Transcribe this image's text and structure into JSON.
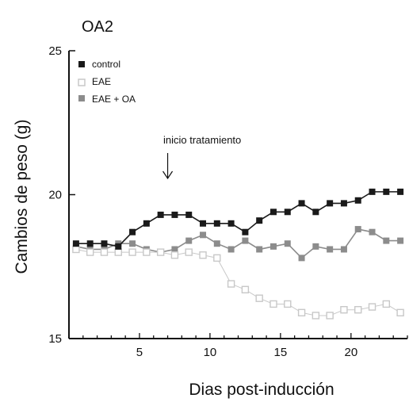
{
  "panel_title": "OA2",
  "chart_data": {
    "type": "line",
    "title": "OA2",
    "xlabel": "Dias post-inducción",
    "ylabel": "Cambios de peso (g)",
    "xlim": [
      0,
      24
    ],
    "ylim": [
      15,
      25
    ],
    "xticks": [
      5,
      10,
      15,
      20
    ],
    "yticks": [
      15,
      20,
      25
    ],
    "x": [
      0.5,
      1.5,
      2.5,
      3.5,
      4.5,
      5.5,
      6.5,
      7.5,
      8.5,
      9.5,
      10.5,
      11.5,
      12.5,
      13.5,
      14.5,
      15.5,
      16.5,
      17.5,
      18.5,
      19.5,
      20.5,
      21.5,
      22.5,
      23.5
    ],
    "series": [
      {
        "name": "control",
        "color": "#1a1a1a",
        "values": [
          18.3,
          18.3,
          18.3,
          18.2,
          18.7,
          19.0,
          19.3,
          19.3,
          19.3,
          19.0,
          19.0,
          19.0,
          18.7,
          19.1,
          19.4,
          19.4,
          19.7,
          19.4,
          19.7,
          19.7,
          19.8,
          20.1,
          20.1,
          20.1
        ]
      },
      {
        "name": "EAE",
        "color": "#c8c8c8",
        "values": [
          18.1,
          18.0,
          18.0,
          18.0,
          18.0,
          18.0,
          18.0,
          17.9,
          18.0,
          17.9,
          17.8,
          16.9,
          16.7,
          16.4,
          16.2,
          16.2,
          15.9,
          15.8,
          15.8,
          16.0,
          16.0,
          16.1,
          16.2,
          15.9
        ]
      },
      {
        "name": "EAE + OA",
        "color": "#8c8c8c",
        "values": [
          18.2,
          18.1,
          18.1,
          18.3,
          18.3,
          18.1,
          18.0,
          18.1,
          18.4,
          18.6,
          18.3,
          18.1,
          18.4,
          18.1,
          18.2,
          18.3,
          17.8,
          18.2,
          18.1,
          18.1,
          18.8,
          18.7,
          18.4,
          18.4
        ]
      }
    ],
    "legend_position": "top-left",
    "annotation": {
      "text": "inicio tratamiento",
      "x": 7,
      "arrow": "down"
    },
    "grid": false
  }
}
